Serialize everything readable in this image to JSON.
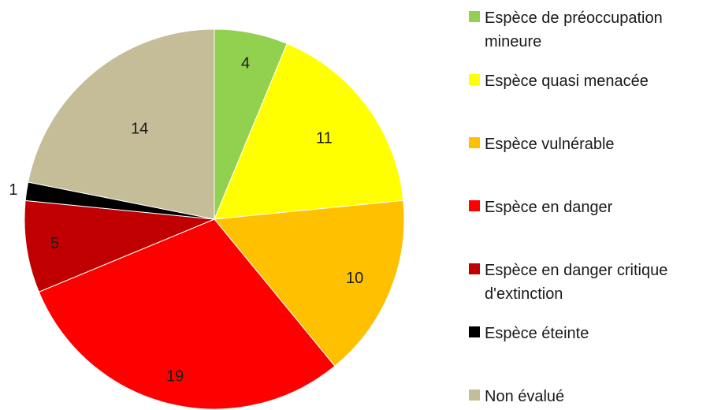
{
  "chart_data": {
    "type": "pie",
    "title": "",
    "categories": [
      "Espèce de préoccupation mineure",
      "Espèce quasi menacée",
      "Espèce vulnérable",
      "Espèce en danger",
      "Espèce en danger critique d'extinction",
      "Espèce éteinte",
      "Non évalué"
    ],
    "values": [
      4,
      11,
      10,
      19,
      5,
      1,
      14
    ],
    "colors": [
      "#92d050",
      "#ffff00",
      "#ffc000",
      "#ff0000",
      "#c00000",
      "#000000",
      "#c4bd97"
    ],
    "legend_position": "right"
  },
  "legend": {
    "items": [
      {
        "label": "Espèce de préoccupation mineure",
        "color": "#92d050"
      },
      {
        "label": "Espèce quasi menacée",
        "color": "#ffff00"
      },
      {
        "label": "Espèce vulnérable",
        "color": "#ffc000"
      },
      {
        "label": "Espèce en danger",
        "color": "#ff0000"
      },
      {
        "label": "Espèce en danger critique d'extinction",
        "color": "#c00000"
      },
      {
        "label": "Espèce éteinte",
        "color": "#000000"
      },
      {
        "label": "Non évalué",
        "color": "#c4bd97"
      }
    ]
  }
}
